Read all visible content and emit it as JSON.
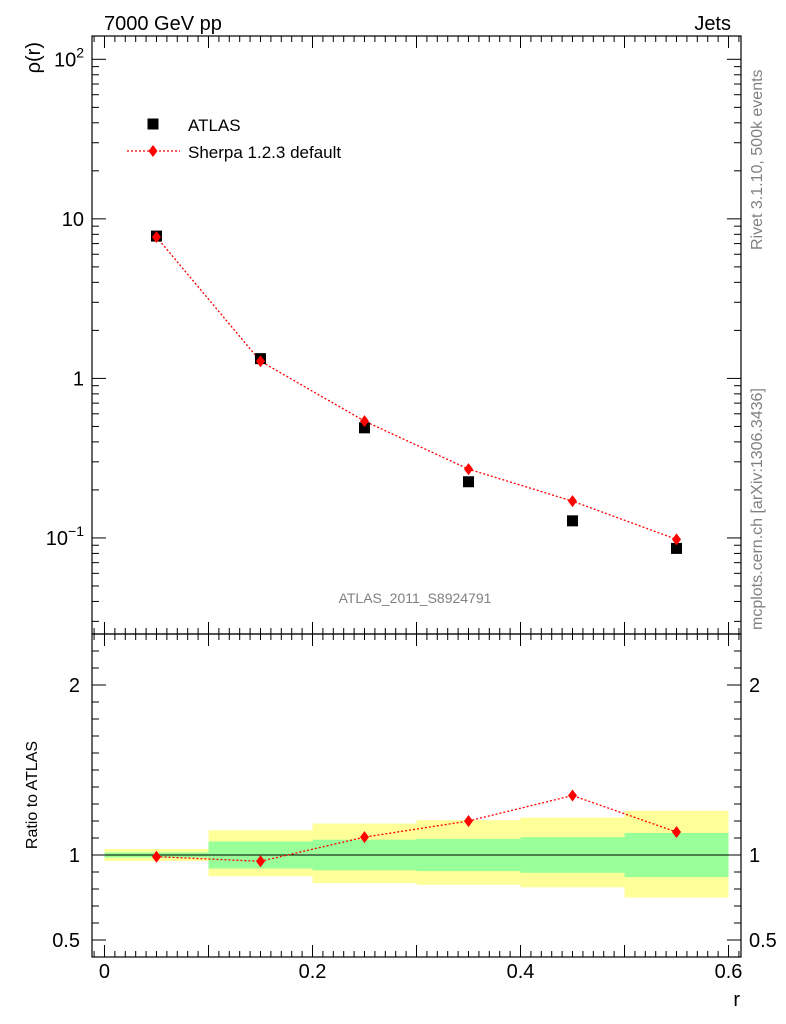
{
  "header": {
    "left": "7000 GeV pp",
    "right": "Jets"
  },
  "side_text": {
    "top": "Rivet 3.1.10,  500k events",
    "bottom": "mcplots.cern.ch [arXiv:1306.3436]"
  },
  "analysis_label": "ATLAS_2011_S8924791",
  "chart_data": [
    {
      "type": "scatter",
      "panel": "main",
      "ylabel": "ρ(r)",
      "xlabel": "",
      "yscale": "log",
      "xlim": [
        -0.012,
        0.612
      ],
      "ylim": [
        0.025,
        140
      ],
      "ytick_labels": [
        {
          "value": 0.1,
          "base": "10",
          "exp": "−1"
        },
        {
          "value": 1,
          "base": "1",
          "exp": ""
        },
        {
          "value": 10,
          "base": "10",
          "exp": ""
        },
        {
          "value": 100,
          "base": "10",
          "exp": "2"
        }
      ],
      "legend": {
        "position": "top-left",
        "entries": [
          "ATLAS",
          "Sherpa 1.2.3 default"
        ]
      },
      "series": [
        {
          "name": "ATLAS",
          "color": "#000000",
          "marker": "square",
          "x": [
            0.05,
            0.15,
            0.25,
            0.35,
            0.45,
            0.55
          ],
          "y": [
            7.8,
            1.33,
            0.49,
            0.225,
            0.128,
            0.086
          ]
        },
        {
          "name": "Sherpa 1.2.3 default",
          "color": "#ff0000",
          "marker": "diamond",
          "line": "dotted",
          "x": [
            0.05,
            0.15,
            0.25,
            0.35,
            0.45,
            0.55
          ],
          "y": [
            7.7,
            1.28,
            0.54,
            0.27,
            0.17,
            0.098
          ]
        }
      ]
    },
    {
      "type": "line",
      "panel": "ratio",
      "ylabel": "Ratio to ATLAS",
      "xlabel": "r",
      "xlim": [
        -0.012,
        0.612
      ],
      "ylim": [
        0.4,
        2.3
      ],
      "xtick_labels": [
        "0",
        "0.2",
        "0.4",
        "0.6"
      ],
      "xtick_values": [
        0,
        0.2,
        0.4,
        0.6
      ],
      "ytick_labels": [
        "0.5",
        "1",
        "2"
      ],
      "ytick_values": [
        0.5,
        1,
        2
      ],
      "reference_line": 1,
      "bands": {
        "bins": [
          [
            0,
            0.1
          ],
          [
            0.1,
            0.2
          ],
          [
            0.2,
            0.3
          ],
          [
            0.3,
            0.4
          ],
          [
            0.4,
            0.5
          ],
          [
            0.5,
            0.6
          ]
        ],
        "stat": {
          "color": "#99ff99",
          "lo": [
            0.985,
            0.92,
            0.91,
            0.905,
            0.895,
            0.87
          ],
          "hi": [
            1.015,
            1.08,
            1.09,
            1.095,
            1.105,
            1.13
          ]
        },
        "total": {
          "color": "#ffff99",
          "lo": [
            0.965,
            0.875,
            0.835,
            0.825,
            0.81,
            0.75
          ],
          "hi": [
            1.035,
            1.145,
            1.185,
            1.205,
            1.22,
            1.26
          ]
        }
      },
      "series": [
        {
          "name": "Sherpa 1.2.3 default",
          "color": "#ff0000",
          "marker": "diamond",
          "line": "dotted",
          "x": [
            0.05,
            0.15,
            0.25,
            0.35,
            0.45,
            0.55
          ],
          "y": [
            0.99,
            0.963,
            1.105,
            1.2,
            1.35,
            1.135
          ]
        }
      ]
    }
  ]
}
